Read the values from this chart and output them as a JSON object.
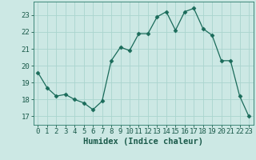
{
  "x": [
    0,
    1,
    2,
    3,
    4,
    5,
    6,
    7,
    8,
    9,
    10,
    11,
    12,
    13,
    14,
    15,
    16,
    17,
    18,
    19,
    20,
    21,
    22,
    23
  ],
  "y": [
    19.6,
    18.7,
    18.2,
    18.3,
    18.0,
    17.8,
    17.4,
    17.9,
    20.3,
    21.1,
    20.9,
    21.9,
    21.9,
    22.9,
    23.2,
    22.1,
    23.2,
    23.4,
    22.2,
    21.8,
    20.3,
    20.3,
    18.2,
    17.0
  ],
  "line_color": "#1a6b5a",
  "marker": "D",
  "marker_size": 2.5,
  "bg_color": "#cce8e4",
  "grid_color": "#aad4ce",
  "axis_color": "#2a7a6a",
  "tick_color": "#1a5a4a",
  "xlabel": "Humidex (Indice chaleur)",
  "ylim": [
    16.5,
    23.8
  ],
  "xlim": [
    -0.5,
    23.5
  ],
  "yticks": [
    17,
    18,
    19,
    20,
    21,
    22,
    23
  ],
  "xticks": [
    0,
    1,
    2,
    3,
    4,
    5,
    6,
    7,
    8,
    9,
    10,
    11,
    12,
    13,
    14,
    15,
    16,
    17,
    18,
    19,
    20,
    21,
    22,
    23
  ],
  "xlabel_fontsize": 7.5,
  "tick_fontsize": 6.5
}
